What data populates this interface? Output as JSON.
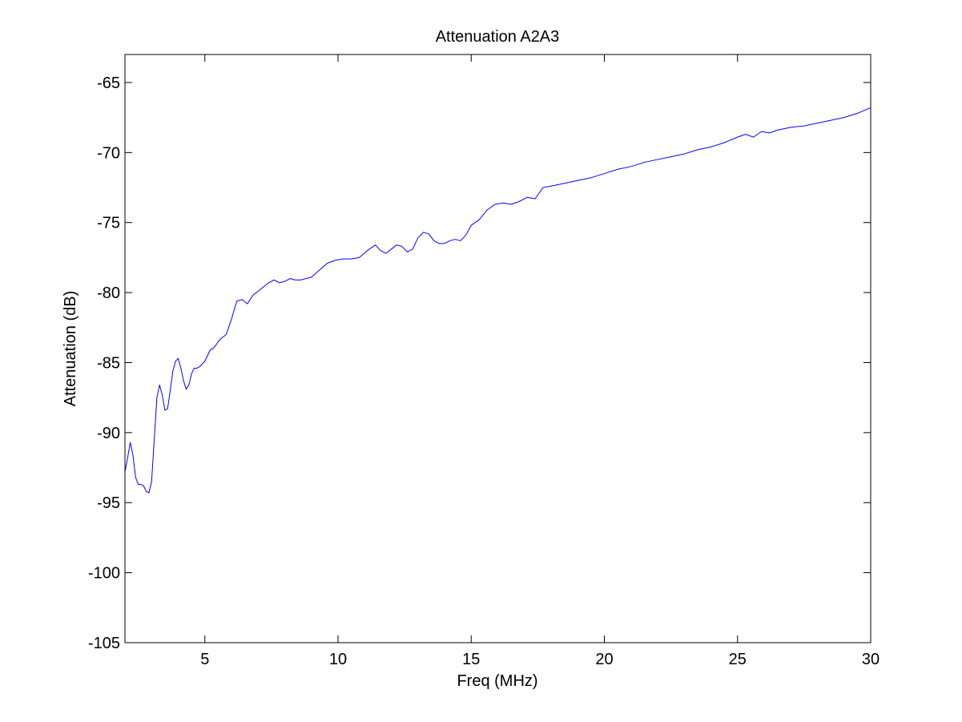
{
  "chart_data": {
    "type": "line",
    "title": "Attenuation A2A3",
    "xlabel": "Freq (MHz)",
    "ylabel": "Attenuation (dB)",
    "xlim": [
      2,
      30
    ],
    "ylim": [
      -105,
      -63
    ],
    "xticks": [
      5,
      10,
      15,
      20,
      25,
      30
    ],
    "yticks": [
      -105,
      -100,
      -95,
      -90,
      -85,
      -80,
      -75,
      -70,
      -65
    ],
    "grid": false,
    "line_color": "#0000ff",
    "series": [
      {
        "x": [
          2.0,
          2.1,
          2.2,
          2.3,
          2.4,
          2.5,
          2.6,
          2.7,
          2.8,
          2.9,
          3.0,
          3.1,
          3.2,
          3.3,
          3.4,
          3.5,
          3.6,
          3.7,
          3.8,
          3.9,
          4.0,
          4.1,
          4.2,
          4.3,
          4.4,
          4.5,
          4.6,
          4.7,
          4.8,
          4.9,
          5.0,
          5.1,
          5.2,
          5.3,
          5.4,
          5.5,
          5.6,
          5.8,
          6.0,
          6.2,
          6.4,
          6.6,
          6.8,
          7.0,
          7.2,
          7.4,
          7.6,
          7.8,
          8.0,
          8.2,
          8.4,
          8.6,
          8.8,
          9.0,
          9.3,
          9.6,
          9.9,
          10.2,
          10.5,
          10.8,
          11.1,
          11.4,
          11.6,
          11.8,
          12.0,
          12.2,
          12.4,
          12.6,
          12.8,
          13.0,
          13.2,
          13.4,
          13.6,
          13.8,
          14.0,
          14.2,
          14.4,
          14.6,
          14.8,
          15.0,
          15.3,
          15.6,
          15.9,
          16.2,
          16.5,
          16.8,
          17.1,
          17.4,
          17.7,
          18.0,
          18.5,
          19.0,
          19.5,
          20.0,
          20.5,
          21.0,
          21.5,
          22.0,
          22.5,
          23.0,
          23.5,
          24.0,
          24.5,
          25.0,
          25.3,
          25.6,
          25.9,
          26.2,
          26.5,
          27.0,
          27.5,
          28.0,
          28.5,
          29.0,
          29.5,
          30.0
        ],
        "y": [
          -92.8,
          -91.8,
          -90.7,
          -91.6,
          -93.2,
          -93.7,
          -93.7,
          -93.8,
          -94.2,
          -94.3,
          -93.5,
          -90.5,
          -87.5,
          -86.6,
          -87.3,
          -88.4,
          -88.3,
          -87.0,
          -85.6,
          -84.9,
          -84.7,
          -85.4,
          -86.3,
          -86.9,
          -86.6,
          -85.8,
          -85.4,
          -85.4,
          -85.3,
          -85.1,
          -84.9,
          -84.5,
          -84.1,
          -84.0,
          -83.8,
          -83.5,
          -83.3,
          -83.0,
          -81.9,
          -80.6,
          -80.5,
          -80.8,
          -80.2,
          -79.9,
          -79.6,
          -79.3,
          -79.1,
          -79.3,
          -79.2,
          -79.0,
          -79.1,
          -79.1,
          -79.0,
          -78.9,
          -78.4,
          -77.9,
          -77.7,
          -77.6,
          -77.6,
          -77.5,
          -77.0,
          -76.6,
          -77.0,
          -77.2,
          -76.9,
          -76.6,
          -76.7,
          -77.1,
          -76.9,
          -76.1,
          -75.7,
          -75.8,
          -76.3,
          -76.5,
          -76.5,
          -76.3,
          -76.2,
          -76.3,
          -75.9,
          -75.2,
          -74.8,
          -74.1,
          -73.7,
          -73.6,
          -73.7,
          -73.5,
          -73.2,
          -73.3,
          -72.5,
          -72.4,
          -72.2,
          -72.0,
          -71.8,
          -71.5,
          -71.2,
          -71.0,
          -70.7,
          -70.5,
          -70.3,
          -70.1,
          -69.8,
          -69.6,
          -69.3,
          -68.9,
          -68.7,
          -68.9,
          -68.5,
          -68.6,
          -68.4,
          -68.2,
          -68.1,
          -67.9,
          -67.7,
          -67.5,
          -67.2,
          -66.8
        ]
      }
    ]
  }
}
